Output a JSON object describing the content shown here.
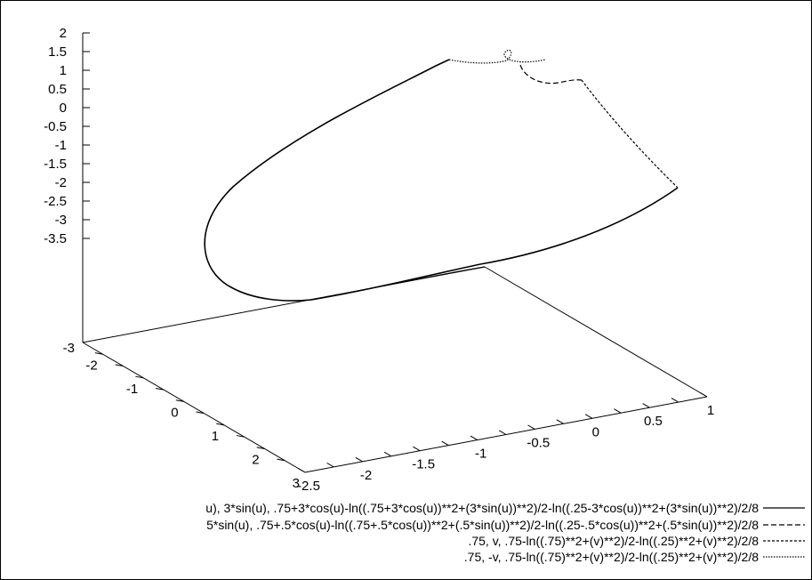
{
  "chart_data": {
    "type": "line",
    "title": "",
    "grid": false,
    "legend_placement": "bottom-right",
    "axes": {
      "z": {
        "ticks": [
          "2",
          "1.5",
          "1",
          "0.5",
          "0",
          "-0.5",
          "-1",
          "-1.5",
          "-2",
          "-2.5",
          "-3",
          "-3.5"
        ],
        "range": [
          -3.5,
          2
        ]
      },
      "base_corner_label": "-3",
      "y": {
        "ticks": [
          "-2",
          "-1",
          "0",
          "1",
          "2",
          "3"
        ],
        "range": [
          -2.5,
          3
        ]
      },
      "x": {
        "ticks": [
          "-2.5",
          "-2",
          "-1.5",
          "-1",
          "-0.5",
          "0",
          "0.5",
          "1"
        ],
        "range": [
          -2.5,
          1
        ]
      }
    },
    "series": [
      {
        "name": "u), 3*sin(u), .75+3*cos(u)-ln((.75+3*cos(u))**2+(3*sin(u))**2)/2-ln((.25-3*cos(u))**2+(3*sin(u))**2)/2/8",
        "style": "solid"
      },
      {
        "name": "5*sin(u), .75+.5*cos(u)-ln((.75+.5*cos(u))**2+(.5*sin(u))**2)/2-ln((.25-.5*cos(u))**2+(.5*sin(u))**2)/2/8",
        "style": "dashed"
      },
      {
        "name": ".75, v, .75-ln((.75)**2+(v)**2)/2-ln((.25)**2+(v)**2)/2/8",
        "style": "short-dash"
      },
      {
        "name": ".75, -v, .75-ln((.75)**2+(v)**2)/2-ln((.25)**2+(v)**2)/2/8",
        "style": "dotted"
      }
    ]
  }
}
